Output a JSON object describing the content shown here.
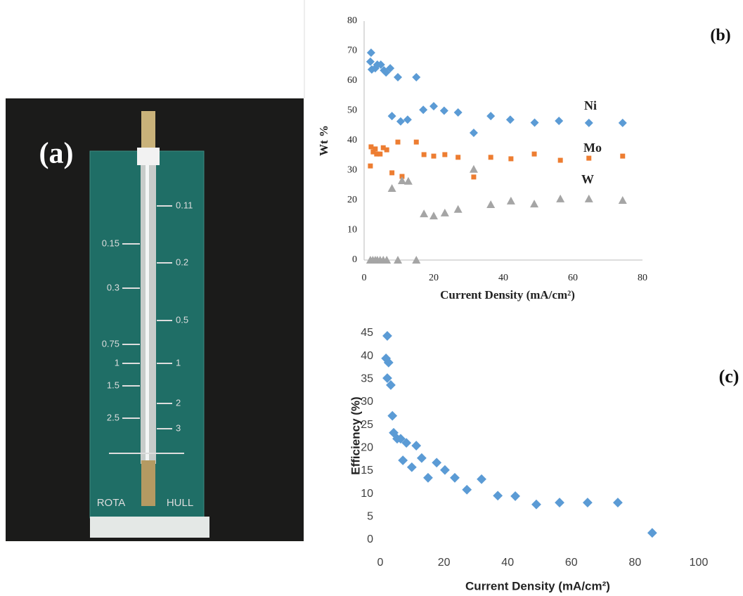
{
  "photo": {
    "label": "(a)",
    "left_scale": [
      "0.15",
      "0.3",
      "0.75",
      "1",
      "1.5",
      "2.5"
    ],
    "right_scale": [
      "0.11",
      "0.2",
      "0.5",
      "1",
      "2",
      "3"
    ],
    "brand_left": "ROTA",
    "brand_right": "HULL"
  },
  "chart_data": [
    {
      "type": "scatter",
      "panel_label": "(b)",
      "x_label": "Current Density (mA/cm²)",
      "y_label": "Wt %",
      "xlim": [
        0,
        80
      ],
      "xticks": [
        0,
        20,
        40,
        60,
        80
      ],
      "ylim": [
        0,
        80
      ],
      "yticks": [
        0,
        10,
        20,
        30,
        40,
        50,
        60,
        70,
        80
      ],
      "grid": false,
      "series": [
        {
          "name": "Ni",
          "color": "#5b9bd5",
          "marker": "diamond",
          "x": [
            2,
            1.8,
            2.2,
            3.2,
            3.8,
            4.8,
            5.7,
            6.3,
            7.5,
            9.7,
            15,
            8,
            10.5,
            12.5,
            17,
            20,
            23,
            27,
            31.5,
            36.4,
            42,
            49,
            56,
            64.6,
            74.3
          ],
          "values": [
            69.4,
            66.4,
            63.8,
            64.2,
            65.4,
            65.4,
            63.5,
            62.8,
            64.2,
            61.2,
            61.2,
            48.2,
            46.4,
            47,
            50.3,
            51.5,
            50,
            49.4,
            42.6,
            48.2,
            47,
            46,
            46.6,
            45.9,
            45.9
          ]
        },
        {
          "name": "Mo",
          "color": "#ed7d31",
          "marker": "square",
          "x": [
            1.8,
            2,
            2.6,
            3.2,
            3.6,
            4.6,
            5.5,
            6.5,
            8,
            9.7,
            10.9,
            15,
            17.2,
            20,
            23.2,
            27,
            31.5,
            36.4,
            42.2,
            48.9,
            56.4,
            64.6,
            74.3
          ],
          "values": [
            31.5,
            37.9,
            36.2,
            37.2,
            35.5,
            35.5,
            37.6,
            36.9,
            29.2,
            39.5,
            28,
            39.5,
            35.3,
            34.8,
            35.3,
            34.4,
            27.8,
            34.4,
            33.9,
            35.5,
            33.4,
            34.1,
            34.8
          ]
        },
        {
          "name": "W",
          "color": "#a5a5a5",
          "marker": "triangle",
          "x": [
            1.8,
            2.5,
            3.2,
            3.8,
            4.6,
            5.5,
            6.5,
            9.7,
            15,
            8,
            10.9,
            12.7,
            17.2,
            20,
            23.2,
            27,
            31.5,
            36.4,
            42.2,
            48.9,
            56.4,
            64.6,
            74.3
          ],
          "values": [
            0,
            0,
            0,
            0,
            0,
            0,
            0,
            0,
            0,
            24,
            26.6,
            26.4,
            15.5,
            14.8,
            15.8,
            17,
            30.4,
            18.6,
            19.8,
            18.8,
            20.5,
            20.5,
            20
          ]
        }
      ]
    },
    {
      "type": "scatter",
      "panel_label": "(c)",
      "x_label": "Current Density (mA/cm²)",
      "y_label": "Efficiency (%)",
      "xlim": [
        0,
        100
      ],
      "xticks": [
        0,
        20,
        40,
        60,
        80,
        100
      ],
      "ylim": [
        0,
        45
      ],
      "yticks": [
        0,
        5,
        10,
        15,
        20,
        25,
        30,
        35,
        40,
        45
      ],
      "grid": false,
      "series": [
        {
          "color": "#5b9bd5",
          "marker": "diamond",
          "x": [
            2.2,
            1.8,
            2.6,
            2.2,
            3.3,
            3.8,
            4.2,
            5.3,
            6.4,
            8.2,
            7.1,
            11.3,
            13,
            9.9,
            15,
            17.7,
            20.3,
            23.4,
            27.2,
            31.8,
            36.9,
            42.4,
            49,
            56.3,
            65.1,
            74.6,
            85.4
          ],
          "values": [
            44.4,
            39.5,
            38.6,
            35.2,
            33.7,
            27,
            23.3,
            22,
            22,
            21.1,
            17.3,
            20.5,
            17.8,
            15.8,
            13.5,
            16.8,
            15.2,
            13.5,
            10.9,
            13.2,
            9.6,
            9.5,
            7.7,
            8.1,
            8.1,
            8.1,
            1.5
          ]
        }
      ]
    }
  ]
}
